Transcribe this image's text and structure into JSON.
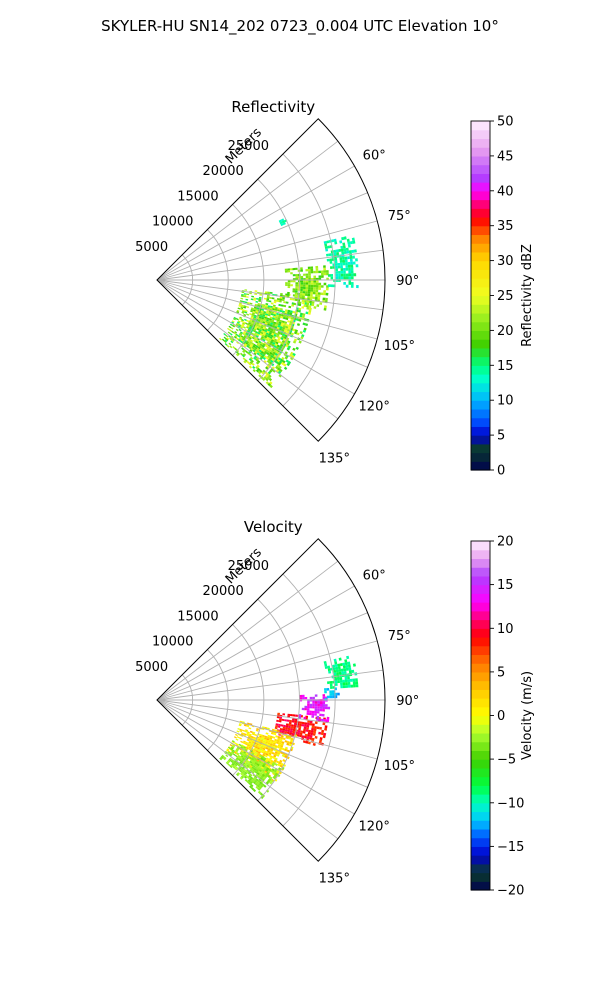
{
  "figure": {
    "suptitle": "SKYLER-HU  SN14_202  0723_0.004 UTC Elevation 10°"
  },
  "chart_data": [
    {
      "type": "heatmap",
      "projection": "polar sector",
      "title": "Reflectivity",
      "radial_axis_label": "Meters",
      "radial_ticks": [
        5000,
        10000,
        15000,
        20000,
        25000
      ],
      "radial_tick_labels": [
        "5000",
        "10000",
        "15000",
        "20000",
        "25000"
      ],
      "rlim": [
        0,
        32000
      ],
      "angle_ticks_deg": [
        60,
        75,
        90,
        105,
        120,
        135
      ],
      "angle_tick_labels": [
        "60°",
        "75°",
        "90°",
        "105°",
        "120°",
        "135°"
      ],
      "angle_range_deg": [
        45,
        135
      ],
      "grid": true,
      "colorbar": {
        "label": "Reflectivity dBZ",
        "range": [
          0,
          50
        ],
        "ticks": [
          0,
          5,
          10,
          15,
          20,
          25,
          30,
          35,
          40,
          45,
          50
        ],
        "tick_labels": [
          "0",
          "5",
          "10",
          "15",
          "20",
          "25",
          "30",
          "35",
          "40",
          "45",
          "50"
        ],
        "color_stops": [
          {
            "v": 0,
            "c": "#000050"
          },
          {
            "v": 3,
            "c": "#0a3d2a"
          },
          {
            "v": 5,
            "c": "#0000cc"
          },
          {
            "v": 7,
            "c": "#0050ff"
          },
          {
            "v": 10,
            "c": "#00b4ff"
          },
          {
            "v": 13,
            "c": "#00ffd0"
          },
          {
            "v": 15,
            "c": "#00ff80"
          },
          {
            "v": 18,
            "c": "#40d000"
          },
          {
            "v": 22,
            "c": "#a0f020"
          },
          {
            "v": 25,
            "c": "#f0ff20"
          },
          {
            "v": 30,
            "c": "#ffd800"
          },
          {
            "v": 33,
            "c": "#ff8c00"
          },
          {
            "v": 36,
            "c": "#ff0000"
          },
          {
            "v": 38,
            "c": "#ff0070"
          },
          {
            "v": 40,
            "c": "#ff00ff"
          },
          {
            "v": 42,
            "c": "#b040ff"
          },
          {
            "v": 46,
            "c": "#e8a0f0"
          },
          {
            "v": 50,
            "c": "#fff0ff"
          }
        ]
      },
      "echo_regions": [
        {
          "name": "main-echo",
          "az_range_deg": [
            96,
            133
          ],
          "r_range_m": [
            12000,
            22000
          ],
          "value_range": [
            15,
            26
          ]
        },
        {
          "name": "east-band",
          "az_range_deg": [
            85,
            100
          ],
          "r_range_m": [
            18000,
            24000
          ],
          "value_range": [
            17,
            24
          ]
        },
        {
          "name": "far-fringe",
          "az_range_deg": [
            77,
            92
          ],
          "r_range_m": [
            24000,
            28000
          ],
          "value_range": [
            12,
            16
          ]
        },
        {
          "name": "far-speck",
          "az_range_deg": [
            64,
            66
          ],
          "r_range_m": [
            19000,
            20000
          ],
          "value_range": [
            12,
            15
          ]
        }
      ]
    },
    {
      "type": "heatmap",
      "projection": "polar sector",
      "title": "Velocity",
      "radial_axis_label": "Meters",
      "radial_ticks": [
        5000,
        10000,
        15000,
        20000,
        25000
      ],
      "radial_tick_labels": [
        "5000",
        "10000",
        "15000",
        "20000",
        "25000"
      ],
      "rlim": [
        0,
        32000
      ],
      "angle_ticks_deg": [
        60,
        75,
        90,
        105,
        120,
        135
      ],
      "angle_tick_labels": [
        "60°",
        "75°",
        "90°",
        "105°",
        "120°",
        "135°"
      ],
      "angle_range_deg": [
        45,
        135
      ],
      "grid": true,
      "colorbar": {
        "label": "Velocity (m/s)",
        "range": [
          -20,
          20
        ],
        "ticks": [
          -20,
          -15,
          -10,
          -5,
          0,
          5,
          10,
          15,
          20
        ],
        "tick_labels": [
          "−20",
          "−15",
          "−10",
          "−5",
          "0",
          "5",
          "10",
          "15",
          "20"
        ],
        "color_stops": [
          {
            "v": -20,
            "c": "#000050"
          },
          {
            "v": -18,
            "c": "#0a3d2a"
          },
          {
            "v": -16,
            "c": "#0000cc"
          },
          {
            "v": -14,
            "c": "#0050ff"
          },
          {
            "v": -12,
            "c": "#00c8ff"
          },
          {
            "v": -10,
            "c": "#00ffc0"
          },
          {
            "v": -8,
            "c": "#00ff40"
          },
          {
            "v": -5,
            "c": "#40d000"
          },
          {
            "v": -2,
            "c": "#b0ff30"
          },
          {
            "v": 0,
            "c": "#ffff00"
          },
          {
            "v": 3,
            "c": "#ffc800"
          },
          {
            "v": 6,
            "c": "#ff7800"
          },
          {
            "v": 9,
            "c": "#ff0000"
          },
          {
            "v": 11,
            "c": "#ff0070"
          },
          {
            "v": 13,
            "c": "#ff00ff"
          },
          {
            "v": 16,
            "c": "#b040ff"
          },
          {
            "v": 18,
            "c": "#e8a0f0"
          },
          {
            "v": 20,
            "c": "#fff0ff"
          }
        ]
      },
      "echo_regions": [
        {
          "name": "outbound-core",
          "az_range_deg": [
            96,
            106
          ],
          "r_range_m": [
            17000,
            24000
          ],
          "value_range": [
            7,
            11
          ]
        },
        {
          "name": "outbound-max",
          "az_range_deg": [
            88,
            97
          ],
          "r_range_m": [
            20000,
            24000
          ],
          "value_range": [
            12,
            16
          ]
        },
        {
          "name": "inbound-edge",
          "az_range_deg": [
            86,
            90
          ],
          "r_range_m": [
            23500,
            25500
          ],
          "value_range": [
            -13,
            -11
          ]
        },
        {
          "name": "near-zero",
          "az_range_deg": [
            104,
            126
          ],
          "r_range_m": [
            12000,
            20000
          ],
          "value_range": [
            -1,
            4
          ]
        },
        {
          "name": "weak-inbound",
          "az_range_deg": [
            118,
            133
          ],
          "r_range_m": [
            12000,
            20000
          ],
          "value_range": [
            -4,
            -2
          ]
        },
        {
          "name": "far-fringe",
          "az_range_deg": [
            77,
            86
          ],
          "r_range_m": [
            24000,
            28000
          ],
          "value_range": [
            -10,
            -8
          ]
        }
      ]
    }
  ]
}
